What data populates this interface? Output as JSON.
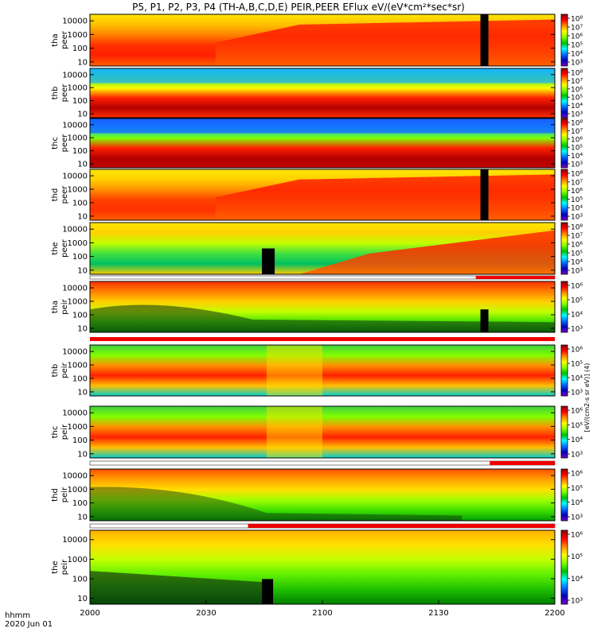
{
  "title": "P5, P1, P2, P3, P4 (TH-A,B,C,D,E) PEIR,PEER EFlux eV/(eV*cm²*sec*sr)",
  "footer": {
    "line1": "hhmm",
    "line2": "2020 Jun 01"
  },
  "colors": {
    "red_bar": "#ee0000",
    "dark_red": "#b40000",
    "background": "#ffffff"
  },
  "chart_data": {
    "type": "heatmap",
    "x_axis": {
      "ticks": [
        "2000",
        "2030",
        "2100",
        "2130",
        "2200"
      ],
      "range": [
        "2000",
        "2200"
      ]
    },
    "y_ticks": [
      "10000",
      "1000",
      "100",
      "10"
    ],
    "ylim": [
      5,
      30000
    ],
    "log_scale": true,
    "colorbar": {
      "ticks": [
        "10⁸",
        "10⁷",
        "10⁶",
        "10⁵",
        "10⁴",
        "10³"
      ],
      "scale": "log",
      "colormap": "rainbow"
    },
    "colorbar_axis_label": "[eV/(cm2-s sr eV)] (4)",
    "panels": [
      {
        "id": "tha-peer",
        "label": "tha peer",
        "colorbar_ticks": [
          "10⁸",
          "10⁷",
          "10⁶",
          "10⁵",
          "10⁴",
          "10³"
        ]
      },
      {
        "id": "thb-peer",
        "label": "thb peer",
        "colorbar_ticks": [
          "10⁸",
          "10⁷",
          "10⁶",
          "10⁵",
          "10⁴",
          "10³"
        ]
      },
      {
        "id": "thc-peer",
        "label": "thc peer",
        "colorbar_ticks": [
          "10⁸",
          "10⁷",
          "10⁶",
          "10⁵",
          "10⁴",
          "10³"
        ]
      },
      {
        "id": "thd-peer",
        "label": "thd peer",
        "colorbar_ticks": [
          "10⁸",
          "10⁷",
          "10⁶",
          "10⁵",
          "10⁴",
          "10³"
        ]
      },
      {
        "id": "the-peer",
        "label": "the peer",
        "colorbar_ticks": [
          "10⁸",
          "10⁷",
          "10⁶",
          "10⁵",
          "10⁴",
          "10³"
        ]
      },
      {
        "id": "tha-peir",
        "label": "tha peir",
        "colorbar_ticks": [
          "10⁶",
          "10⁵",
          "10⁴",
          "10³"
        ]
      },
      {
        "id": "thb-peir",
        "label": "thb peir",
        "colorbar_ticks": [
          "10⁶",
          "10⁵",
          "10⁴",
          "10³"
        ]
      },
      {
        "id": "thc-peir",
        "label": "thc peir",
        "colorbar_ticks": [
          "10⁶",
          "10⁵",
          "10⁴",
          "10³"
        ]
      },
      {
        "id": "thd-peir",
        "label": "thd peir",
        "colorbar_ticks": [
          "10⁶",
          "10⁵",
          "10⁴",
          "10³"
        ]
      },
      {
        "id": "the-peir",
        "label": "the peir",
        "colorbar_ticks": [
          "10⁶",
          "10⁵",
          "10⁴",
          "10³"
        ]
      }
    ]
  }
}
